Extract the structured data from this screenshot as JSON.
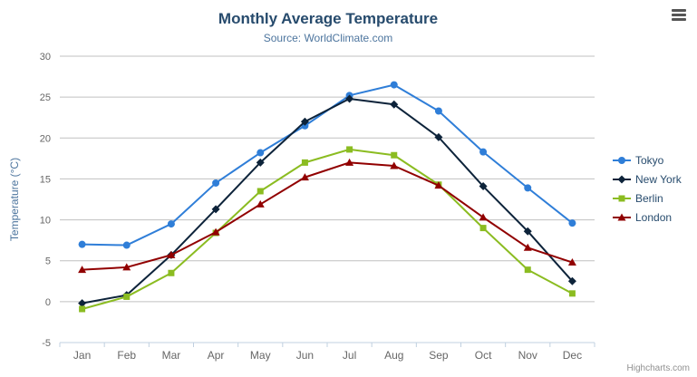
{
  "chart_data": {
    "type": "line",
    "title": "Monthly Average Temperature",
    "subtitle": "Source: WorldClimate.com",
    "categories": [
      "Jan",
      "Feb",
      "Mar",
      "Apr",
      "May",
      "Jun",
      "Jul",
      "Aug",
      "Sep",
      "Oct",
      "Nov",
      "Dec"
    ],
    "xlabel": "",
    "ylabel": "Temperature (°C)",
    "ylim": [
      -5,
      30
    ],
    "yticks": [
      -5,
      0,
      5,
      10,
      15,
      20,
      25,
      30
    ],
    "grid": true,
    "legend_position": "right",
    "series": [
      {
        "name": "Tokyo",
        "color": "#2f7ed8",
        "marker": "circle",
        "values": [
          7.0,
          6.9,
          9.5,
          14.5,
          18.2,
          21.5,
          25.2,
          26.5,
          23.3,
          18.3,
          13.9,
          9.6
        ]
      },
      {
        "name": "New York",
        "color": "#0d233a",
        "marker": "diamond",
        "values": [
          -0.2,
          0.8,
          5.7,
          11.3,
          17.0,
          22.0,
          24.8,
          24.1,
          20.1,
          14.1,
          8.6,
          2.5
        ]
      },
      {
        "name": "Berlin",
        "color": "#8bbc21",
        "marker": "square",
        "values": [
          -0.9,
          0.6,
          3.5,
          8.4,
          13.5,
          17.0,
          18.6,
          17.9,
          14.3,
          9.0,
          3.9,
          1.0
        ]
      },
      {
        "name": "London",
        "color": "#910000",
        "marker": "triangle",
        "values": [
          3.9,
          4.2,
          5.7,
          8.5,
          11.9,
          15.2,
          17.0,
          16.6,
          14.2,
          10.3,
          6.6,
          4.8
        ]
      }
    ]
  },
  "credits": "Highcharts.com",
  "icons": {
    "export_menu": "hamburger-icon"
  },
  "style": {
    "grid_color": "#C0C0C0",
    "axis_line_color": "#C0D0E0",
    "title_color": "#274b6d",
    "subtitle_color": "#4d759e",
    "legend_text_color": "#274b6d"
  }
}
